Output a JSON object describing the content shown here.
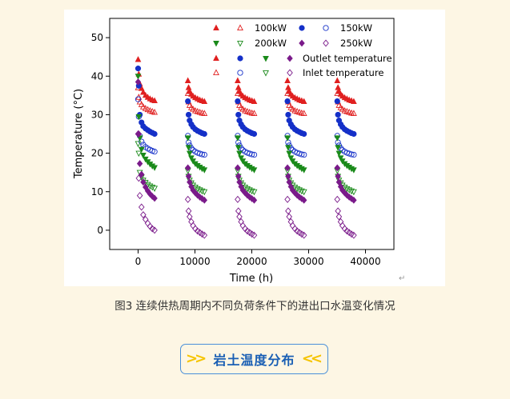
{
  "chart_data": {
    "type": "scatter",
    "xlabel": "Time (h)",
    "ylabel": "Temperature (°C)",
    "xlim": [
      -5000,
      45000
    ],
    "ylim": [
      -5,
      55
    ],
    "xticks": [
      0,
      10000,
      20000,
      30000,
      40000
    ],
    "yticks": [
      0,
      10,
      20,
      30,
      40,
      50
    ],
    "xtick_labels": [
      "0",
      "10000",
      "20000",
      "30000",
      "40000"
    ],
    "ytick_labels": [
      "0",
      "10",
      "20",
      "30",
      "40",
      "50"
    ],
    "legend_position": "top-right",
    "legend": {
      "rows": [
        {
          "kind": "load",
          "label": "100kW"
        },
        {
          "kind": "load",
          "label": "150kW"
        },
        {
          "kind": "load",
          "label": "200kW"
        },
        {
          "kind": "load",
          "label": "250kW"
        },
        {
          "kind": "type",
          "label": "Outlet temperature"
        },
        {
          "kind": "type",
          "label": "Inlet temperature"
        }
      ]
    },
    "cycle_starts": [
      0,
      8760,
      17520,
      26280,
      35040
    ],
    "cycle_offsets_h": [
      0,
      120,
      300,
      600,
      900,
      1300,
      1700,
      2100,
      2500,
      2900
    ],
    "series": [
      {
        "name": "100kW",
        "role": "outlet",
        "marker": "triangle",
        "filled": true,
        "color": "#e02020",
        "first_cycle": [
          44.3,
          40.5,
          38.0,
          36.8,
          35.8,
          35.0,
          34.5,
          34.1,
          33.8,
          33.6
        ],
        "later_cycles": [
          38.8,
          37.0,
          36.0,
          35.3,
          34.8,
          34.4,
          34.1,
          33.8,
          33.6,
          33.4
        ]
      },
      {
        "name": "100kW",
        "role": "inlet",
        "marker": "triangle",
        "filled": false,
        "color": "#e02020",
        "first_cycle": [
          37.0,
          34.5,
          33.3,
          32.6,
          32.0,
          31.6,
          31.3,
          31.0,
          30.8,
          30.6
        ],
        "later_cycles": [
          35.5,
          33.3,
          32.4,
          31.8,
          31.4,
          31.0,
          30.8,
          30.6,
          30.4,
          30.3
        ]
      },
      {
        "name": "150kW",
        "role": "outlet",
        "marker": "circle",
        "filled": true,
        "color": "#1530c8",
        "first_cycle": [
          42.0,
          37.5,
          30.0,
          28.0,
          27.0,
          26.4,
          26.0,
          25.6,
          25.3,
          25.0
        ],
        "later_cycles": [
          33.5,
          30.0,
          28.5,
          27.5,
          26.8,
          26.2,
          25.8,
          25.5,
          25.2,
          25.0
        ]
      },
      {
        "name": "150kW",
        "role": "inlet",
        "marker": "circle",
        "filled": false,
        "color": "#1530c8",
        "first_cycle": [
          34.0,
          29.5,
          24.5,
          23.0,
          22.2,
          21.6,
          21.2,
          20.9,
          20.6,
          20.4
        ],
        "later_cycles": [
          24.5,
          22.8,
          22.0,
          21.3,
          20.8,
          20.4,
          20.1,
          19.9,
          19.7,
          19.6
        ]
      },
      {
        "name": "200kW",
        "role": "outlet",
        "marker": "triangle-down",
        "filled": true,
        "color": "#1a8a1a",
        "first_cycle": [
          40.0,
          29.5,
          24.0,
          21.0,
          19.5,
          18.5,
          17.8,
          17.2,
          16.7,
          16.3
        ],
        "later_cycles": [
          24.0,
          21.5,
          20.0,
          18.8,
          18.0,
          17.3,
          16.8,
          16.4,
          16.0,
          15.7
        ]
      },
      {
        "name": "200kW",
        "role": "inlet",
        "marker": "triangle-down",
        "filled": false,
        "color": "#1a8a1a",
        "first_cycle": [
          22.5,
          20.0,
          15.0,
          13.8,
          13.0,
          12.4,
          11.9,
          11.5,
          11.2,
          10.9
        ],
        "later_cycles": [
          15.5,
          14.0,
          13.0,
          12.3,
          11.7,
          11.2,
          10.8,
          10.5,
          10.2,
          10.0
        ]
      },
      {
        "name": "250kW",
        "role": "outlet",
        "marker": "diamond",
        "filled": true,
        "color": "#7a1a8a",
        "first_cycle": [
          38.5,
          25.0,
          17.3,
          14.5,
          12.5,
          11.2,
          10.2,
          9.4,
          8.8,
          8.3
        ],
        "later_cycles": [
          16.2,
          14.0,
          12.5,
          11.3,
          10.4,
          9.7,
          9.1,
          8.6,
          8.2,
          7.8
        ]
      },
      {
        "name": "250kW",
        "role": "inlet",
        "marker": "diamond",
        "filled": false,
        "color": "#7a1a8a",
        "first_cycle": [
          25.0,
          13.5,
          9.0,
          6.0,
          4.0,
          2.8,
          1.8,
          1.0,
          0.4,
          0.0
        ],
        "later_cycles": [
          8.0,
          5.0,
          3.5,
          2.2,
          1.2,
          0.4,
          -0.2,
          -0.6,
          -1.0,
          -1.3
        ]
      }
    ]
  },
  "caption": "图3  连续供热周期内不同负荷条件下的进出口水温变化情况",
  "return_mark": "↵",
  "section_button": {
    "label": "岩土温度分布",
    "left_chevron": ">>",
    "right_chevron": "<<"
  }
}
